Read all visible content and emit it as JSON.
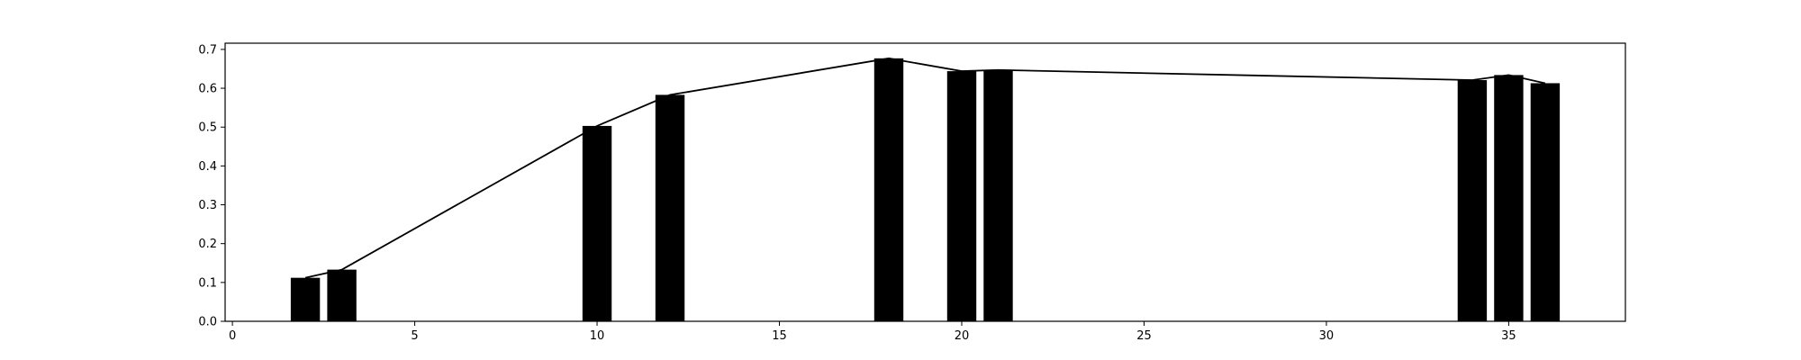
{
  "chart_data": {
    "type": "bar",
    "title": "",
    "xlabel": "",
    "ylabel": "",
    "xlim": [
      -0.2,
      38.2
    ],
    "ylim": [
      0.0,
      0.716
    ],
    "x_ticks": [
      0,
      5,
      10,
      15,
      20,
      25,
      30,
      35
    ],
    "y_ticks": [
      0.0,
      0.1,
      0.2,
      0.3,
      0.4,
      0.5,
      0.6,
      0.7
    ],
    "x_tick_labels": [
      "0",
      "5",
      "10",
      "15",
      "20",
      "25",
      "30",
      "35"
    ],
    "y_tick_labels": [
      "0.0",
      "0.1",
      "0.2",
      "0.3",
      "0.4",
      "0.5",
      "0.6",
      "0.7"
    ],
    "grid": false,
    "legend": "none",
    "bar_width": 0.8,
    "bar_color": "#000000",
    "line_color": "#000000",
    "x": [
      2,
      3,
      10,
      12,
      18,
      20,
      21,
      34,
      35,
      36
    ],
    "values": [
      0.112,
      0.133,
      0.503,
      0.583,
      0.677,
      0.644,
      0.647,
      0.621,
      0.634,
      0.613
    ],
    "line": {
      "x": [
        2,
        3,
        10,
        12,
        18,
        20,
        21,
        34,
        35,
        36
      ],
      "y": [
        0.112,
        0.133,
        0.503,
        0.583,
        0.677,
        0.644,
        0.647,
        0.621,
        0.634,
        0.613
      ]
    }
  }
}
